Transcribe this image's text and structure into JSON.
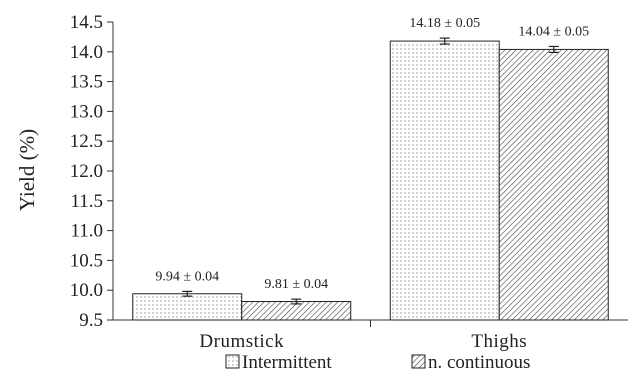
{
  "chart_data": {
    "type": "bar",
    "title": "",
    "xlabel": "",
    "ylabel": "Yield (%)",
    "ylim": [
      9.5,
      14.5
    ],
    "yticks": [
      "9.5",
      "10.0",
      "10.5",
      "11.0",
      "11.5",
      "12.0",
      "12.5",
      "13.0",
      "13.5",
      "14.0",
      "14.5"
    ],
    "categories": [
      "Drumstick",
      "Thighs"
    ],
    "series": [
      {
        "name": "Intermittent",
        "values": [
          9.94,
          14.18
        ],
        "errors": [
          0.04,
          0.05
        ],
        "labels": [
          "9.94 ± 0.04",
          "14.18 ± 0.05"
        ],
        "pattern": "dots"
      },
      {
        "name": "n. continuous",
        "values": [
          9.81,
          14.04
        ],
        "errors": [
          0.04,
          0.05
        ],
        "labels": [
          "9.81 ± 0.04",
          "14.04 ± 0.05"
        ],
        "pattern": "hatch"
      }
    ],
    "grid": false,
    "legend": "bottom-center",
    "colors": {
      "ink": "#222222",
      "dots": "#555555",
      "hatch": "#555555",
      "fill": "#ffffff"
    }
  }
}
